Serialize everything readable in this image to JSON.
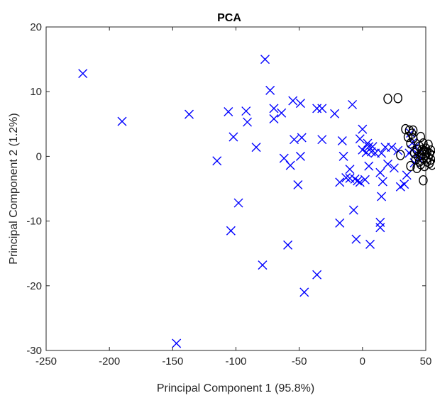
{
  "chart_data": {
    "type": "scatter",
    "title": "PCA",
    "xlabel": "Principal Component 1 (95.8%)",
    "ylabel": "Principal Component 2 (1.2%)",
    "xlim": [
      -250,
      50
    ],
    "ylim": [
      -30,
      20
    ],
    "xticks": [
      "-250",
      "-200",
      "-150",
      "-100",
      "-50",
      "0",
      "50"
    ],
    "yticks": [
      "-30",
      "-20",
      "-10",
      "0",
      "10",
      "20"
    ],
    "grid": false,
    "series": [
      {
        "marker": "x",
        "color": "#0000ff",
        "points": [
          [
            -221,
            12.8
          ],
          [
            -190,
            5.4
          ],
          [
            -147,
            -28.9
          ],
          [
            -137,
            6.5
          ],
          [
            -115,
            -0.7
          ],
          [
            -106,
            6.9
          ],
          [
            -104,
            -11.5
          ],
          [
            -102,
            3.0
          ],
          [
            -98,
            -7.2
          ],
          [
            -92,
            7.0
          ],
          [
            -91,
            5.3
          ],
          [
            -84,
            1.4
          ],
          [
            -79,
            -16.8
          ],
          [
            -77,
            15.0
          ],
          [
            -73,
            10.2
          ],
          [
            -70,
            7.4
          ],
          [
            -70,
            5.8
          ],
          [
            -64,
            6.7
          ],
          [
            -62,
            -0.3
          ],
          [
            -59,
            -13.7
          ],
          [
            -57,
            -1.4
          ],
          [
            -55,
            8.6
          ],
          [
            -54,
            2.6
          ],
          [
            -51,
            -4.4
          ],
          [
            -49,
            8.2
          ],
          [
            -49,
            0.0
          ],
          [
            -48,
            2.9
          ],
          [
            -46,
            -21.0
          ],
          [
            -36,
            7.4
          ],
          [
            -36,
            -18.3
          ],
          [
            -32,
            7.4
          ],
          [
            -32,
            2.6
          ],
          [
            -22,
            6.6
          ],
          [
            -18,
            -10.3
          ],
          [
            -18,
            -4.0
          ],
          [
            -16,
            2.4
          ],
          [
            -15,
            0.0
          ],
          [
            -13,
            -3.3
          ],
          [
            -10,
            -2.0
          ],
          [
            -10,
            -3.4
          ],
          [
            -8,
            8.0
          ],
          [
            -7,
            -8.3
          ],
          [
            -6,
            -3.5
          ],
          [
            -5,
            -12.8
          ],
          [
            -4,
            -3.8
          ],
          [
            -2,
            2.7
          ],
          [
            -2,
            -4.0
          ],
          [
            0,
            1.0
          ],
          [
            0,
            4.2
          ],
          [
            2,
            -3.6
          ],
          [
            3,
            0.6
          ],
          [
            4,
            2.0
          ],
          [
            5,
            -1.5
          ],
          [
            5,
            1.5
          ],
          [
            6,
            -13.6
          ],
          [
            7,
            0.7
          ],
          [
            8,
            1.5
          ],
          [
            10,
            0.5
          ],
          [
            14,
            -2.5
          ],
          [
            14,
            -10.2
          ],
          [
            14,
            -11.0
          ],
          [
            15,
            -6.2
          ],
          [
            15,
            0.5
          ],
          [
            16,
            -3.9
          ],
          [
            18,
            1.4
          ],
          [
            20,
            -1.2
          ],
          [
            23,
            1.4
          ],
          [
            25,
            -1.8
          ],
          [
            28,
            0.9
          ],
          [
            30,
            -4.7
          ],
          [
            33,
            -4.3
          ],
          [
            35,
            -2.9
          ],
          [
            37,
            0.5
          ],
          [
            38,
            3.6
          ],
          [
            39,
            1.0
          ],
          [
            40,
            2.2
          ],
          [
            41,
            -1.0
          ],
          [
            42,
            1.5
          ],
          [
            44,
            0.3
          ],
          [
            45,
            -0.5
          ]
        ]
      },
      {
        "marker": "o",
        "color": "#000000",
        "points": [
          [
            20,
            8.9
          ],
          [
            28,
            9.0
          ],
          [
            30,
            0.2
          ],
          [
            34,
            4.2
          ],
          [
            36,
            3.0
          ],
          [
            37,
            4.0
          ],
          [
            38,
            2.0
          ],
          [
            39,
            3.5
          ],
          [
            40,
            4.0
          ],
          [
            41,
            0.5
          ],
          [
            42,
            -0.5
          ],
          [
            43,
            1.0
          ],
          [
            44,
            0.0
          ],
          [
            45,
            1.5
          ],
          [
            45,
            -0.8
          ],
          [
            46,
            0.2
          ],
          [
            46,
            -1.2
          ],
          [
            47,
            1.0
          ],
          [
            47,
            0.5
          ],
          [
            48,
            -0.3
          ],
          [
            48,
            2.0
          ],
          [
            49,
            0.8
          ],
          [
            49,
            -1.5
          ],
          [
            50,
            0.2
          ],
          [
            50,
            1.2
          ],
          [
            51,
            -0.8
          ],
          [
            51,
            0.6
          ],
          [
            52,
            -0.2
          ],
          [
            52,
            1.8
          ],
          [
            53,
            -1.0
          ],
          [
            53,
            0.4
          ],
          [
            54,
            0.9
          ],
          [
            54,
            -0.5
          ],
          [
            55,
            0.1
          ],
          [
            55,
            -1.3
          ],
          [
            48,
            -3.7
          ],
          [
            38,
            -1.5
          ],
          [
            40,
            2.8
          ],
          [
            43,
            -1.8
          ],
          [
            46,
            3.0
          ]
        ]
      }
    ]
  }
}
